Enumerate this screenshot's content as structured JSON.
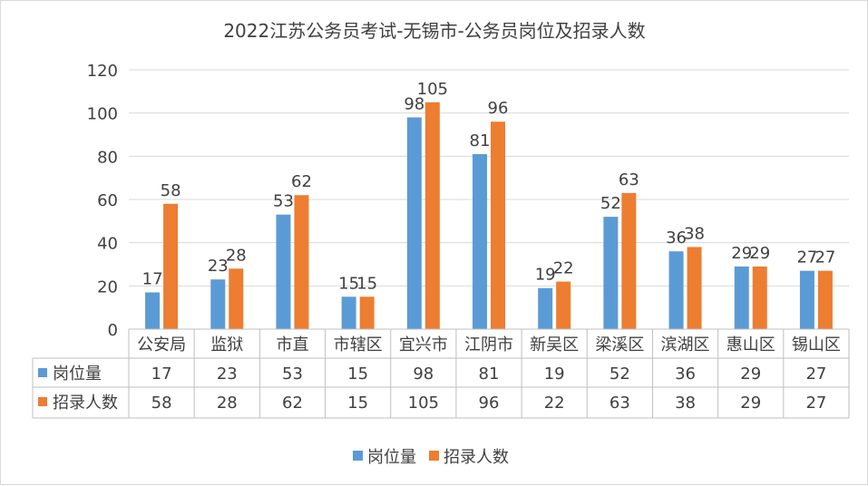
{
  "chart_data": {
    "type": "bar",
    "title": "2022江苏公务员考试-无锡市-公务员岗位及招录人数",
    "categories": [
      "公安局",
      "监狱",
      "市直",
      "市辖区",
      "宜兴市",
      "江阴市",
      "新吴区",
      "梁溪区",
      "滨湖区",
      "惠山区",
      "锡山区"
    ],
    "series": [
      {
        "name": "岗位量",
        "values": [
          17,
          23,
          53,
          15,
          98,
          81,
          19,
          52,
          36,
          29,
          27
        ],
        "color": "#5B9BD5"
      },
      {
        "name": "招录人数",
        "values": [
          58,
          28,
          62,
          15,
          105,
          96,
          22,
          63,
          38,
          29,
          27
        ],
        "color": "#ED7D31"
      }
    ],
    "ylim": [
      0,
      120
    ],
    "yticks": [
      0,
      20,
      40,
      60,
      80,
      100,
      120
    ],
    "grid": true,
    "data_table": true,
    "legend_position": "bottom"
  }
}
